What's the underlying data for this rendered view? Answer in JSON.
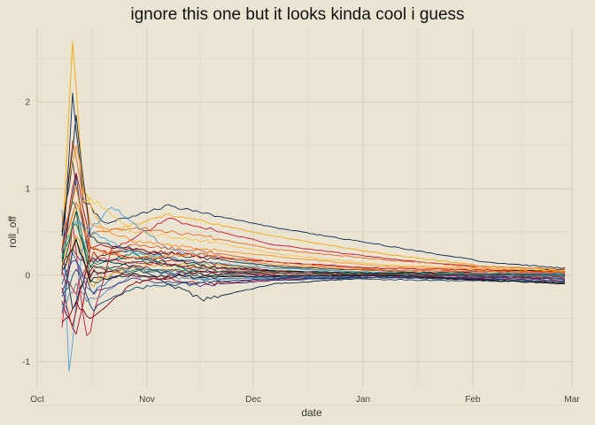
{
  "chart_data": {
    "type": "line",
    "title": "ignore this one but it looks kinda cool i guess",
    "xlabel": "date",
    "ylabel": "roll_off",
    "x_ticks": [
      "Oct",
      "Nov",
      "Dec",
      "Jan",
      "Feb",
      "Mar"
    ],
    "y_ticks": [
      -1,
      0,
      1,
      2
    ],
    "xlim": [
      "2022-10-01",
      "2023-03-01"
    ],
    "ylim": [
      -1.3,
      2.85
    ],
    "grid": true,
    "legend": "none",
    "series_count": 30,
    "series_start": "2022-10-08",
    "series_end": "2023-02-27",
    "series": [
      {
        "color": "#0b2d5b",
        "values": [
          [
            0,
            0.0
          ],
          [
            3,
            2.1
          ],
          [
            6,
            0.9
          ],
          [
            12,
            0.6
          ],
          [
            30,
            0.8
          ],
          [
            60,
            0.55
          ],
          [
            90,
            0.35
          ],
          [
            120,
            0.15
          ],
          [
            142,
            0.08
          ]
        ]
      },
      {
        "color": "#f2a900",
        "values": [
          [
            0,
            0.2
          ],
          [
            3,
            2.75
          ],
          [
            6,
            1.0
          ],
          [
            12,
            0.5
          ],
          [
            30,
            0.7
          ],
          [
            60,
            0.45
          ],
          [
            90,
            0.25
          ],
          [
            120,
            0.1
          ],
          [
            142,
            0.06
          ]
        ]
      },
      {
        "color": "#c8102e",
        "values": [
          [
            0,
            -0.6
          ],
          [
            3,
            0.6
          ],
          [
            7,
            -0.75
          ],
          [
            14,
            0.3
          ],
          [
            30,
            0.65
          ],
          [
            60,
            0.35
          ],
          [
            90,
            0.2
          ],
          [
            120,
            0.08
          ],
          [
            142,
            0.04
          ]
        ]
      },
      {
        "color": "#4a9fe0",
        "values": [
          [
            0,
            0.7
          ],
          [
            2,
            -1.1
          ],
          [
            6,
            0.4
          ],
          [
            14,
            0.8
          ],
          [
            30,
            0.3
          ],
          [
            60,
            0.1
          ],
          [
            90,
            0.02
          ],
          [
            120,
            -0.02
          ],
          [
            142,
            -0.03
          ]
        ]
      },
      {
        "color": "#002244",
        "values": [
          [
            0,
            0.3
          ],
          [
            3,
            -0.4
          ],
          [
            8,
            0.2
          ],
          [
            20,
            0.1
          ],
          [
            30,
            -0.1
          ],
          [
            40,
            -0.28
          ],
          [
            60,
            -0.1
          ],
          [
            90,
            -0.02
          ],
          [
            142,
            -0.09
          ]
        ]
      },
      {
        "color": "#e56a1f",
        "values": [
          [
            0,
            0.4
          ],
          [
            3,
            1.6
          ],
          [
            8,
            0.5
          ],
          [
            20,
            0.55
          ],
          [
            40,
            0.45
          ],
          [
            60,
            0.3
          ],
          [
            90,
            0.18
          ],
          [
            120,
            0.1
          ],
          [
            142,
            0.07
          ]
        ]
      },
      {
        "color": "#a4000f",
        "values": [
          [
            0,
            -0.3
          ],
          [
            3,
            -0.6
          ],
          [
            8,
            0.3
          ],
          [
            20,
            0.2
          ],
          [
            40,
            0.15
          ],
          [
            60,
            0.05
          ],
          [
            90,
            0.0
          ],
          [
            142,
            0.02
          ]
        ]
      },
      {
        "color": "#006b3f",
        "values": [
          [
            0,
            0.1
          ],
          [
            3,
            0.9
          ],
          [
            8,
            0.1
          ],
          [
            20,
            0.25
          ],
          [
            40,
            0.0
          ],
          [
            60,
            0.05
          ],
          [
            90,
            0.0
          ],
          [
            142,
            0.0
          ]
        ]
      },
      {
        "color": "#2f2f2f",
        "values": [
          [
            0,
            0.5
          ],
          [
            3,
            1.3
          ],
          [
            8,
            0.2
          ],
          [
            20,
            0.3
          ],
          [
            40,
            0.2
          ],
          [
            60,
            0.1
          ],
          [
            90,
            0.05
          ],
          [
            142,
            -0.05
          ]
        ]
      },
      {
        "color": "#1c6fb8",
        "values": [
          [
            0,
            -0.5
          ],
          [
            3,
            0.3
          ],
          [
            8,
            -0.2
          ],
          [
            20,
            0.1
          ],
          [
            40,
            -0.05
          ],
          [
            60,
            -0.02
          ],
          [
            90,
            0.0
          ],
          [
            142,
            0.03
          ]
        ]
      },
      {
        "color": "#ff8c1a",
        "values": [
          [
            0,
            0.6
          ],
          [
            4,
            1.5
          ],
          [
            8,
            0.6
          ],
          [
            20,
            0.4
          ],
          [
            40,
            0.3
          ],
          [
            60,
            0.22
          ],
          [
            90,
            0.1
          ],
          [
            142,
            0.05
          ]
        ]
      },
      {
        "color": "#9a0020",
        "values": [
          [
            0,
            -0.2
          ],
          [
            4,
            -0.7
          ],
          [
            8,
            0.1
          ],
          [
            20,
            0.0
          ],
          [
            40,
            -0.1
          ],
          [
            60,
            -0.05
          ],
          [
            90,
            -0.02
          ],
          [
            142,
            -0.06
          ]
        ]
      },
      {
        "color": "#1a3e6e",
        "values": [
          [
            0,
            0.2
          ],
          [
            4,
            1.1
          ],
          [
            8,
            0.15
          ],
          [
            20,
            0.2
          ],
          [
            40,
            0.05
          ],
          [
            60,
            0.0
          ],
          [
            90,
            -0.03
          ],
          [
            142,
            -0.02
          ]
        ]
      },
      {
        "color": "#d4a017",
        "values": [
          [
            0,
            0.0
          ],
          [
            4,
            0.5
          ],
          [
            8,
            -0.1
          ],
          [
            20,
            0.1
          ],
          [
            40,
            0.12
          ],
          [
            60,
            0.08
          ],
          [
            90,
            0.03
          ],
          [
            142,
            0.02
          ]
        ]
      },
      {
        "color": "#b3001b",
        "values": [
          [
            0,
            0.3
          ],
          [
            4,
            1.2
          ],
          [
            8,
            0.35
          ],
          [
            20,
            0.3
          ],
          [
            40,
            0.22
          ],
          [
            60,
            0.15
          ],
          [
            90,
            0.08
          ],
          [
            142,
            0.04
          ]
        ]
      },
      {
        "color": "#5b88b5",
        "values": [
          [
            0,
            -0.4
          ],
          [
            4,
            -0.1
          ],
          [
            8,
            -0.3
          ],
          [
            20,
            0.0
          ],
          [
            40,
            -0.05
          ],
          [
            60,
            -0.03
          ],
          [
            90,
            0.0
          ],
          [
            142,
            -0.01
          ]
        ]
      },
      {
        "color": "#123b2a",
        "values": [
          [
            0,
            0.1
          ],
          [
            4,
            0.7
          ],
          [
            8,
            0.0
          ],
          [
            20,
            0.15
          ],
          [
            40,
            0.1
          ],
          [
            60,
            0.05
          ],
          [
            90,
            0.02
          ],
          [
            142,
            0.01
          ]
        ]
      },
      {
        "color": "#e05a2b",
        "values": [
          [
            0,
            0.2
          ],
          [
            4,
            0.9
          ],
          [
            8,
            0.2
          ],
          [
            20,
            0.35
          ],
          [
            40,
            0.28
          ],
          [
            60,
            0.15
          ],
          [
            90,
            0.06
          ],
          [
            142,
            0.03
          ]
        ]
      },
      {
        "color": "#3a3a8c",
        "values": [
          [
            0,
            -0.1
          ],
          [
            4,
            0.2
          ],
          [
            8,
            -0.2
          ],
          [
            20,
            -0.05
          ],
          [
            40,
            -0.12
          ],
          [
            60,
            -0.06
          ],
          [
            90,
            -0.02
          ],
          [
            142,
            -0.04
          ]
        ]
      },
      {
        "color": "#7a0019",
        "values": [
          [
            0,
            -0.6
          ],
          [
            4,
            -0.3
          ],
          [
            8,
            -0.5
          ],
          [
            20,
            -0.1
          ],
          [
            40,
            0.05
          ],
          [
            60,
            0.02
          ],
          [
            90,
            0.0
          ],
          [
            142,
            0.0
          ]
        ]
      },
      {
        "color": "#2aa3d8",
        "values": [
          [
            0,
            0.3
          ],
          [
            4,
            0.6
          ],
          [
            8,
            0.5
          ],
          [
            20,
            0.25
          ],
          [
            40,
            0.15
          ],
          [
            60,
            0.08
          ],
          [
            90,
            0.03
          ],
          [
            142,
            0.02
          ]
        ]
      },
      {
        "color": "#0e1f3d",
        "values": [
          [
            0,
            0.4
          ],
          [
            4,
            1.8
          ],
          [
            8,
            0.4
          ],
          [
            20,
            0.3
          ],
          [
            40,
            0.1
          ],
          [
            60,
            0.05
          ],
          [
            90,
            0.02
          ],
          [
            142,
            0.06
          ]
        ]
      },
      {
        "color": "#f5c242",
        "values": [
          [
            0,
            0.1
          ],
          [
            4,
            0.8
          ],
          [
            8,
            0.9
          ],
          [
            20,
            0.5
          ],
          [
            40,
            0.4
          ],
          [
            60,
            0.25
          ],
          [
            90,
            0.12
          ],
          [
            142,
            0.05
          ]
        ]
      },
      {
        "color": "#cc2936",
        "values": [
          [
            0,
            0.0
          ],
          [
            4,
            -0.2
          ],
          [
            8,
            0.2
          ],
          [
            20,
            0.15
          ],
          [
            40,
            0.08
          ],
          [
            60,
            0.04
          ],
          [
            90,
            0.01
          ],
          [
            142,
            0.01
          ]
        ]
      },
      {
        "color": "#274060",
        "values": [
          [
            0,
            -0.2
          ],
          [
            4,
            0.4
          ],
          [
            8,
            -0.1
          ],
          [
            20,
            0.05
          ],
          [
            40,
            0.0
          ],
          [
            60,
            -0.02
          ],
          [
            90,
            -0.05
          ],
          [
            142,
            -0.08
          ]
        ]
      },
      {
        "color": "#ff6f00",
        "values": [
          [
            0,
            0.5
          ],
          [
            4,
            1.0
          ],
          [
            8,
            0.3
          ],
          [
            20,
            0.2
          ],
          [
            40,
            0.25
          ],
          [
            60,
            0.12
          ],
          [
            90,
            0.05
          ],
          [
            142,
            0.04
          ]
        ]
      },
      {
        "color": "#8b1e3f",
        "values": [
          [
            0,
            0.1
          ],
          [
            4,
            0.3
          ],
          [
            8,
            0.0
          ],
          [
            20,
            0.1
          ],
          [
            40,
            0.02
          ],
          [
            60,
            0.0
          ],
          [
            90,
            -0.01
          ],
          [
            142,
            -0.02
          ]
        ]
      },
      {
        "color": "#00477f",
        "values": [
          [
            0,
            -0.3
          ],
          [
            4,
            0.1
          ],
          [
            8,
            -0.4
          ],
          [
            20,
            -0.15
          ],
          [
            40,
            -0.08
          ],
          [
            60,
            -0.04
          ],
          [
            90,
            -0.02
          ],
          [
            142,
            -0.07
          ]
        ]
      },
      {
        "color": "#1f7a4d",
        "values": [
          [
            0,
            0.2
          ],
          [
            4,
            0.6
          ],
          [
            8,
            0.1
          ],
          [
            20,
            0.05
          ],
          [
            40,
            0.06
          ],
          [
            60,
            0.03
          ],
          [
            90,
            0.01
          ],
          [
            142,
            0.0
          ]
        ]
      },
      {
        "color": "#111111",
        "values": [
          [
            0,
            0.0
          ],
          [
            4,
            0.4
          ],
          [
            8,
            -0.05
          ],
          [
            20,
            0.0
          ],
          [
            40,
            -0.02
          ],
          [
            60,
            -0.01
          ],
          [
            90,
            0.0
          ],
          [
            142,
            -0.1
          ]
        ]
      }
    ]
  }
}
